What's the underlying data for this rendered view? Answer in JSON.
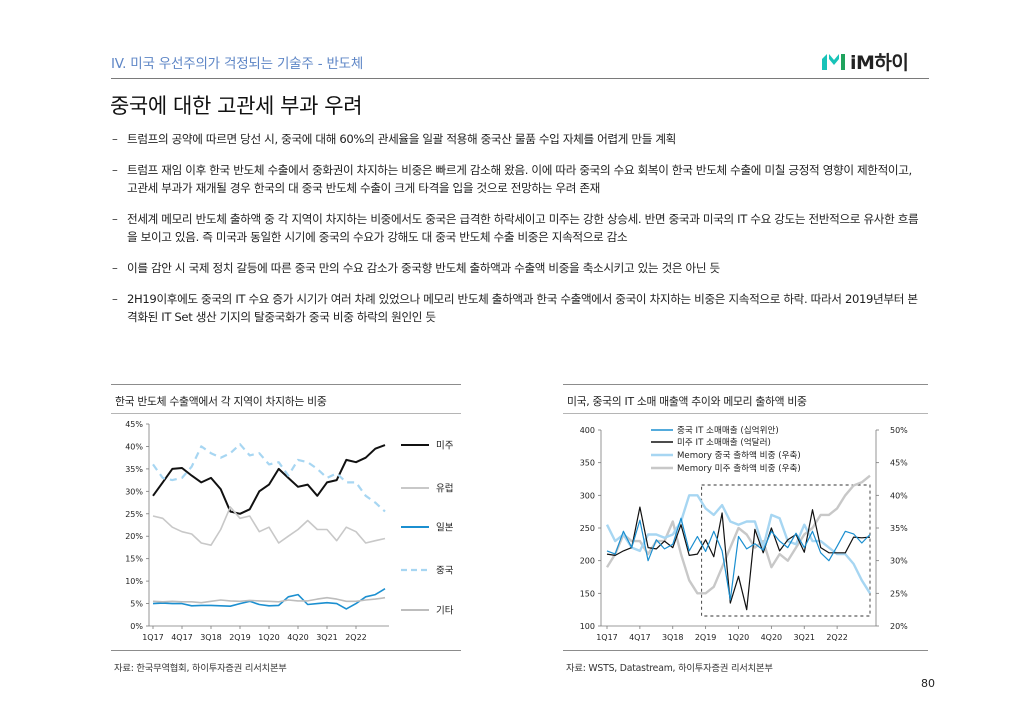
{
  "header": {
    "section_label": "IV. 미국 우선주의가 걱정되는 기술주 - 반도체",
    "logo_text": "iM하이",
    "accent_color": "#5e86c6",
    "logo_color": "#18c3b8",
    "logo_icon": "im-logo-icon"
  },
  "page": {
    "title": "중국에 대한 고관세 부과 우려",
    "number": "80"
  },
  "bullets": [
    "트럼프의 공약에 따르면 당선 시, 중국에 대해 60%의 관세율을 일괄 적용해 중국산 물품 수입 자체를 어렵게 만들 계획",
    "트럼프 재임 이후 한국 반도체 수출에서 중화권이 차지하는 비중은 빠르게 감소해 왔음. 이에 따라 중국의 수요 회복이 한국 반도체 수출에 미칠 긍정적 영향이 제한적이고, 고관세 부과가 재개될 경우 한국의 대 중국 반도체 수출이 크게 타격을 입을 것으로 전망하는 우려 존재",
    "전세계 메모리 반도체 출하액 중 각 지역이 차지하는 비중에서도 중국은 급격한 하락세이고 미주는 강한 상승세. 반면 중국과 미국의 IT 수요 강도는 전반적으로 유사한 흐름을 보이고 있음. 즉 미국과 동일한 시기에 중국의 수요가 강해도 대 중국 반도체 수출 비중은 지속적으로 감소",
    "이를 감안 시 국제 정치 갈등에 따른 중국 만의 수요 감소가 중국향 반도체 출하액과 수출액 비중을 축소시키고 있는 것은 아닌 듯",
    "2H19이후에도 중국의 IT 수요 증가 시기가 여러 차례 있었으나 메모리 반도체 출하액과 한국 수출액에서 중국이 차지하는 비중은 지속적으로 하락. 따라서 2019년부터 본격화된 IT Set 생산 기지의 탈중국화가 중국 비중 하락의 원인인 듯"
  ],
  "chart_left": {
    "title": "한국 반도체 수출액에서 각 지역이 차지하는 비중",
    "source": "자료: 한국무역협회, 하이투자증권 리서치본부"
  },
  "chart_right": {
    "title": "미국, 중국의 IT 소매 매출액 추이와 메모리 출하액 비중",
    "source": "자료: WSTS, Datastream, 하이투자증권 리서치본부"
  },
  "chart_data": [
    {
      "type": "line",
      "title": "한국 반도체 수출액에서 각 지역이 차지하는 비중",
      "x_ticks": [
        "1Q17",
        "4Q17",
        "3Q18",
        "2Q19",
        "1Q20",
        "4Q20",
        "3Q21",
        "2Q22"
      ],
      "ylim": [
        0,
        45
      ],
      "y_ticks": [
        "0%",
        "5%",
        "10%",
        "15%",
        "20%",
        "25%",
        "30%",
        "35%",
        "40%",
        "45%"
      ],
      "series": [
        {
          "name": "미주",
          "color": "#111111",
          "dash": "solid",
          "values": [
            29,
            32,
            35,
            35.2,
            33.5,
            32,
            33,
            30.5,
            25.5,
            25,
            26,
            30,
            31.5,
            35,
            33,
            31,
            31.5,
            29,
            32,
            32.5,
            37,
            36.5,
            37.5,
            39.5,
            40.3
          ]
        },
        {
          "name": "유럽",
          "color": "#c8c8c8",
          "dash": "solid",
          "values": [
            24.5,
            24,
            22,
            21,
            20.5,
            18.5,
            18,
            21.5,
            26.5,
            24,
            24.5,
            21,
            22,
            18.5,
            20,
            21.5,
            23.5,
            21.5,
            21.5,
            19,
            22,
            21,
            18.5,
            19,
            19.5
          ]
        },
        {
          "name": "일본",
          "color": "#1b8fd0",
          "dash": "solid",
          "values": [
            5,
            5.1,
            5,
            5,
            4.5,
            4.6,
            4.6,
            4.5,
            4.4,
            5,
            5.5,
            4.8,
            4.5,
            4.6,
            6.5,
            7,
            4.8,
            5,
            5.2,
            5,
            3.8,
            5,
            6.5,
            7,
            8.3
          ]
        },
        {
          "name": "중국",
          "color": "#a7d6f2",
          "dash": "dashed",
          "values": [
            36,
            33,
            32.5,
            33,
            35.5,
            40,
            38.5,
            37.5,
            38.5,
            40.5,
            38,
            38.5,
            36,
            36.5,
            33.5,
            37,
            36.5,
            35,
            33,
            34,
            32,
            32,
            29,
            27.5,
            25.5
          ]
        },
        {
          "name": "기타",
          "color": "#bdbdbd",
          "dash": "solid",
          "values": [
            5.5,
            5.4,
            5.5,
            5.4,
            5.4,
            5.2,
            5.5,
            5.8,
            5.6,
            5.5,
            5.7,
            5.6,
            5.5,
            5.4,
            5.8,
            5.6,
            5.6,
            6,
            6.3,
            6,
            5.5,
            5.5,
            5.8,
            6,
            6.3
          ]
        }
      ]
    },
    {
      "type": "line",
      "title": "미국, 중국의 IT 소매 매출액 추이와 메모리 출하액 비중",
      "x_ticks": [
        "1Q17",
        "4Q17",
        "3Q18",
        "2Q19",
        "1Q20",
        "4Q20",
        "3Q21",
        "2Q22"
      ],
      "ylim_left": [
        100,
        400
      ],
      "ylim_right": [
        20,
        50
      ],
      "y_ticks_left": [
        "100",
        "150",
        "200",
        "250",
        "300",
        "350",
        "400"
      ],
      "y_ticks_right": [
        "20%",
        "25%",
        "30%",
        "35%",
        "40%",
        "45%",
        "50%"
      ],
      "annotation": "dashed box highlighting 2Q19 onward",
      "series": [
        {
          "name": "중국 IT 소매매출 (십억위안)",
          "axis": "left",
          "color": "#1b8fd0",
          "values": [
            215,
            210,
            245,
            220,
            262,
            200,
            232,
            218,
            225,
            265,
            215,
            237,
            214,
            245,
            215,
            140,
            237,
            218,
            226,
            216,
            245,
            230,
            220,
            242,
            220,
            245,
            212,
            200,
            222,
            245,
            241,
            227,
            240
          ]
        },
        {
          "name": "미주 IT 소매매출 (억달러)",
          "axis": "left",
          "color": "#111111",
          "values": [
            210,
            208,
            215,
            220,
            282,
            220,
            218,
            230,
            220,
            255,
            208,
            210,
            232,
            206,
            273,
            135,
            176,
            125,
            248,
            212,
            250,
            215,
            232,
            240,
            213,
            278,
            220,
            212,
            212,
            212,
            236,
            235,
            236
          ]
        },
        {
          "name": "Memory 중국 출하액 비중 (우축)",
          "axis": "right",
          "color": "#a7d6f2",
          "values": [
            35.5,
            33,
            34,
            32,
            31.5,
            34,
            34,
            33.5,
            34,
            36,
            40,
            40,
            38,
            37,
            38.5,
            36,
            35.5,
            36,
            36,
            32,
            37,
            36.5,
            33,
            32.5,
            35.5,
            33,
            33,
            32,
            31,
            31,
            29.5,
            27,
            25
          ]
        },
        {
          "name": "Memory 미주 출하액 비중 (우축)",
          "axis": "right",
          "color": "#c8c8c8",
          "values": [
            29,
            31,
            34,
            33,
            33,
            31,
            33,
            33,
            36,
            31,
            27,
            25,
            25,
            26,
            29,
            32,
            35,
            34,
            32,
            33,
            29,
            31,
            30,
            32,
            34,
            35,
            37,
            37,
            38,
            40,
            41.5,
            42,
            43
          ]
        }
      ]
    }
  ]
}
